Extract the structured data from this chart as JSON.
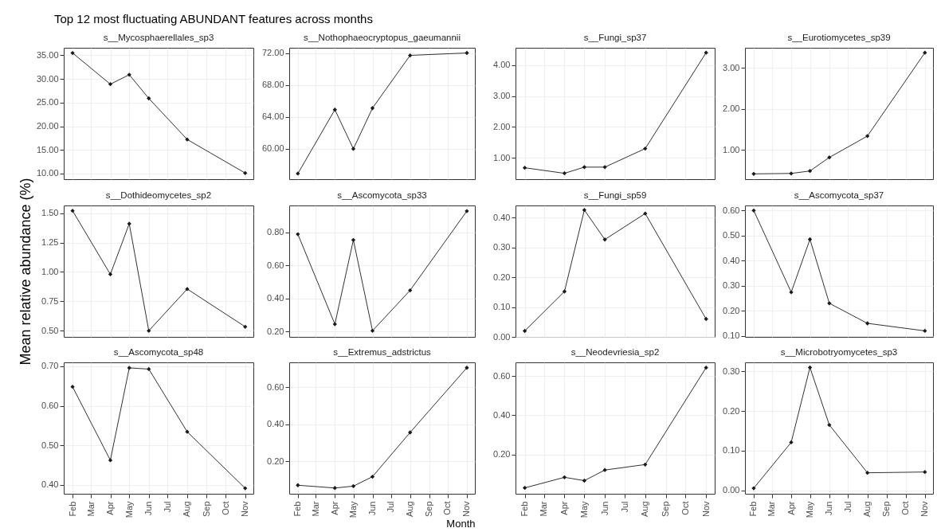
{
  "chart_data": [
    {
      "type": "line",
      "title": "Top 12 most fluctuating ABUNDANT features across months",
      "x": [
        "--02-01",
        "--04-01",
        "--05-01",
        "--06-01",
        "--08-01",
        "--11-01"
      ],
      "xlim": [
        "--01-18",
        "--11-14"
      ],
      "xticks": [
        {
          "value": "--02-01",
          "label": null
        },
        {
          "value": "--03-01",
          "label": null
        },
        {
          "value": "--04-01",
          "label": null
        },
        {
          "value": "--05-01",
          "label": null
        },
        {
          "value": "--06-01",
          "label": null
        },
        {
          "value": "--07-01",
          "label": null
        },
        {
          "value": "--08-01",
          "label": null
        },
        {
          "value": "--09-01",
          "label": null
        },
        {
          "value": "--10-01",
          "label": null
        },
        {
          "value": "--11-01",
          "label": null
        }
      ],
      "ylim": [
        8.8,
        36.6
      ],
      "yticks": [
        {
          "value": 10,
          "label": "10.00"
        },
        {
          "value": 15,
          "label": "15.00"
        },
        {
          "value": 20,
          "label": "20.00"
        },
        {
          "value": 25,
          "label": "25.00"
        },
        {
          "value": 30,
          "label": "30.00"
        },
        {
          "value": 35,
          "label": "35.00"
        }
      ],
      "grid": true,
      "marker": "diamond",
      "tick_labels": "y",
      "series": [
        {
          "name": "s__Mycosphaerellales_sp3",
          "color": "#1a1a1a",
          "values": [
            35.5,
            28.9,
            30.9,
            25.9,
            17.2,
            10.1
          ]
        }
      ]
    },
    {
      "type": "line",
      "x": [
        "--02-01",
        "--04-01",
        "--05-01",
        "--06-01",
        "--08-01",
        "--11-01"
      ],
      "xlim": [
        "--01-18",
        "--11-14"
      ],
      "xticks": [
        {
          "value": "--02-01",
          "label": null
        },
        {
          "value": "--03-01",
          "label": null
        },
        {
          "value": "--04-01",
          "label": null
        },
        {
          "value": "--05-01",
          "label": null
        },
        {
          "value": "--06-01",
          "label": null
        },
        {
          "value": "--07-01",
          "label": null
        },
        {
          "value": "--08-01",
          "label": null
        },
        {
          "value": "--09-01",
          "label": null
        },
        {
          "value": "--10-01",
          "label": null
        },
        {
          "value": "--11-01",
          "label": null
        }
      ],
      "ylim": [
        56.2,
        72.65
      ],
      "yticks": [
        {
          "value": 60,
          "label": "60.00"
        },
        {
          "value": 64,
          "label": "64.00"
        },
        {
          "value": 68,
          "label": "68.00"
        },
        {
          "value": 72,
          "label": "72.00"
        }
      ],
      "grid": true,
      "marker": "diamond",
      "tick_labels": "y",
      "series": [
        {
          "name": "s__Nothophaeocryptopus_gaeumannii",
          "color": "#1a1a1a",
          "values": [
            56.9,
            64.9,
            60.0,
            65.1,
            71.7,
            72.0
          ]
        }
      ]
    },
    {
      "type": "line",
      "x": [
        "--02-01",
        "--04-01",
        "--05-01",
        "--06-01",
        "--08-01",
        "--11-01"
      ],
      "xlim": [
        "--01-18",
        "--11-14"
      ],
      "xticks": [
        {
          "value": "--02-01",
          "label": null
        },
        {
          "value": "--03-01",
          "label": null
        },
        {
          "value": "--04-01",
          "label": null
        },
        {
          "value": "--05-01",
          "label": null
        },
        {
          "value": "--06-01",
          "label": null
        },
        {
          "value": "--07-01",
          "label": null
        },
        {
          "value": "--08-01",
          "label": null
        },
        {
          "value": "--09-01",
          "label": null
        },
        {
          "value": "--10-01",
          "label": null
        },
        {
          "value": "--11-01",
          "label": null
        }
      ],
      "ylim": [
        0.31,
        4.56
      ],
      "yticks": [
        {
          "value": 1,
          "label": "1.00"
        },
        {
          "value": 2,
          "label": "2.00"
        },
        {
          "value": 3,
          "label": "3.00"
        },
        {
          "value": 4,
          "label": "4.00"
        }
      ],
      "grid": true,
      "marker": "diamond",
      "tick_labels": "y",
      "series": [
        {
          "name": "s__Fungi_sp37",
          "color": "#1a1a1a",
          "values": [
            0.68,
            0.5,
            0.7,
            0.7,
            1.3,
            4.4
          ]
        }
      ]
    },
    {
      "type": "line",
      "x": [
        "--02-01",
        "--04-01",
        "--05-01",
        "--06-01",
        "--08-01",
        "--11-01"
      ],
      "xlim": [
        "--01-18",
        "--11-14"
      ],
      "xticks": [
        {
          "value": "--02-01",
          "label": null
        },
        {
          "value": "--03-01",
          "label": null
        },
        {
          "value": "--04-01",
          "label": null
        },
        {
          "value": "--05-01",
          "label": null
        },
        {
          "value": "--06-01",
          "label": null
        },
        {
          "value": "--07-01",
          "label": null
        },
        {
          "value": "--08-01",
          "label": null
        },
        {
          "value": "--09-01",
          "label": null
        },
        {
          "value": "--10-01",
          "label": null
        },
        {
          "value": "--11-01",
          "label": null
        }
      ],
      "ylim": [
        0.29,
        3.49
      ],
      "yticks": [
        {
          "value": 1,
          "label": "1.00"
        },
        {
          "value": 2,
          "label": "2.00"
        },
        {
          "value": 3,
          "label": "3.00"
        }
      ],
      "grid": true,
      "marker": "diamond",
      "tick_labels": "y",
      "series": [
        {
          "name": "s__Eurotiomycetes_sp39",
          "color": "#1a1a1a",
          "values": [
            0.42,
            0.43,
            0.49,
            0.82,
            1.34,
            3.37
          ]
        }
      ]
    },
    {
      "type": "line",
      "ylabel": "Mean relative abundance (%)",
      "x": [
        "--02-01",
        "--04-01",
        "--05-01",
        "--06-01",
        "--08-01",
        "--11-01"
      ],
      "xlim": [
        "--01-18",
        "--11-14"
      ],
      "xticks": [
        {
          "value": "--02-01",
          "label": null
        },
        {
          "value": "--03-01",
          "label": null
        },
        {
          "value": "--04-01",
          "label": null
        },
        {
          "value": "--05-01",
          "label": null
        },
        {
          "value": "--06-01",
          "label": null
        },
        {
          "value": "--07-01",
          "label": null
        },
        {
          "value": "--08-01",
          "label": null
        },
        {
          "value": "--09-01",
          "label": null
        },
        {
          "value": "--10-01",
          "label": null
        },
        {
          "value": "--11-01",
          "label": null
        }
      ],
      "ylim": [
        0.448,
        1.565
      ],
      "yticks": [
        {
          "value": 0.5,
          "label": "0.50"
        },
        {
          "value": 0.75,
          "label": "0.75"
        },
        {
          "value": 1,
          "label": "1.00"
        },
        {
          "value": 1.25,
          "label": "1.25"
        },
        {
          "value": 1.5,
          "label": "1.50"
        }
      ],
      "grid": true,
      "marker": "diamond",
      "tick_labels": "y",
      "series": [
        {
          "name": "s__Dothideomycetes_sp2",
          "color": "#1a1a1a",
          "values": [
            1.52,
            0.98,
            1.41,
            0.5,
            0.855,
            0.534
          ]
        }
      ]
    },
    {
      "type": "line",
      "x": [
        "--02-01",
        "--04-01",
        "--05-01",
        "--06-01",
        "--08-01",
        "--11-01"
      ],
      "xlim": [
        "--01-18",
        "--11-14"
      ],
      "xticks": [
        {
          "value": "--02-01",
          "label": null
        },
        {
          "value": "--03-01",
          "label": null
        },
        {
          "value": "--04-01",
          "label": null
        },
        {
          "value": "--05-01",
          "label": null
        },
        {
          "value": "--06-01",
          "label": null
        },
        {
          "value": "--07-01",
          "label": null
        },
        {
          "value": "--08-01",
          "label": null
        },
        {
          "value": "--09-01",
          "label": null
        },
        {
          "value": "--10-01",
          "label": null
        },
        {
          "value": "--11-01",
          "label": null
        }
      ],
      "ylim": [
        0.168,
        0.964
      ],
      "yticks": [
        {
          "value": 0.2,
          "label": "0.20"
        },
        {
          "value": 0.4,
          "label": "0.40"
        },
        {
          "value": 0.6,
          "label": "0.60"
        },
        {
          "value": 0.8,
          "label": "0.80"
        }
      ],
      "grid": true,
      "marker": "diamond",
      "tick_labels": "y",
      "series": [
        {
          "name": "s__Ascomycota_sp33",
          "color": "#1a1a1a",
          "values": [
            0.79,
            0.245,
            0.755,
            0.205,
            0.45,
            0.93
          ]
        }
      ]
    },
    {
      "type": "line",
      "x": [
        "--02-01",
        "--04-01",
        "--05-01",
        "--06-01",
        "--08-01",
        "--11-01"
      ],
      "xlim": [
        "--01-18",
        "--11-14"
      ],
      "xticks": [
        {
          "value": "--02-01",
          "label": null
        },
        {
          "value": "--03-01",
          "label": null
        },
        {
          "value": "--04-01",
          "label": null
        },
        {
          "value": "--05-01",
          "label": null
        },
        {
          "value": "--06-01",
          "label": null
        },
        {
          "value": "--07-01",
          "label": null
        },
        {
          "value": "--08-01",
          "label": null
        },
        {
          "value": "--09-01",
          "label": null
        },
        {
          "value": "--10-01",
          "label": null
        },
        {
          "value": "--11-01",
          "label": null
        }
      ],
      "ylim": [
        0,
        0.44
      ],
      "yticks": [
        {
          "value": 0,
          "label": "0.00"
        },
        {
          "value": 0.1,
          "label": "0.10"
        },
        {
          "value": 0.2,
          "label": "0.20"
        },
        {
          "value": 0.3,
          "label": "0.30"
        },
        {
          "value": 0.4,
          "label": "0.40"
        }
      ],
      "grid": true,
      "marker": "diamond",
      "tick_labels": "y",
      "series": [
        {
          "name": "s__Fungi_sp59",
          "color": "#1a1a1a",
          "values": [
            0.02,
            0.152,
            0.425,
            0.326,
            0.413,
            0.06
          ]
        }
      ]
    },
    {
      "type": "line",
      "x": [
        "--02-01",
        "--04-01",
        "--05-01",
        "--06-01",
        "--08-01",
        "--11-01"
      ],
      "xlim": [
        "--01-18",
        "--11-14"
      ],
      "xticks": [
        {
          "value": "--02-01",
          "label": null
        },
        {
          "value": "--03-01",
          "label": null
        },
        {
          "value": "--04-01",
          "label": null
        },
        {
          "value": "--05-01",
          "label": null
        },
        {
          "value": "--06-01",
          "label": null
        },
        {
          "value": "--07-01",
          "label": null
        },
        {
          "value": "--08-01",
          "label": null
        },
        {
          "value": "--09-01",
          "label": null
        },
        {
          "value": "--10-01",
          "label": null
        },
        {
          "value": "--11-01",
          "label": null
        }
      ],
      "ylim": [
        0.096,
        0.62
      ],
      "yticks": [
        {
          "value": 0.1,
          "label": "0.10"
        },
        {
          "value": 0.2,
          "label": "0.20"
        },
        {
          "value": 0.3,
          "label": "0.30"
        },
        {
          "value": 0.4,
          "label": "0.40"
        },
        {
          "value": 0.5,
          "label": "0.50"
        },
        {
          "value": 0.6,
          "label": "0.60"
        }
      ],
      "grid": true,
      "marker": "diamond",
      "tick_labels": "y",
      "series": [
        {
          "name": "s__Ascomycota_sp37",
          "color": "#1a1a1a",
          "values": [
            0.6,
            0.274,
            0.485,
            0.23,
            0.15,
            0.12
          ]
        }
      ]
    },
    {
      "type": "line",
      "x": [
        "--02-01",
        "--04-01",
        "--05-01",
        "--06-01",
        "--08-01",
        "--11-01"
      ],
      "xlim": [
        "--01-18",
        "--11-14"
      ],
      "xticks": [
        {
          "value": "--02-01",
          "label": "Feb"
        },
        {
          "value": "--03-01",
          "label": "Mar"
        },
        {
          "value": "--04-01",
          "label": "Apr"
        },
        {
          "value": "--05-01",
          "label": "May"
        },
        {
          "value": "--06-01",
          "label": "Jun"
        },
        {
          "value": "--07-01",
          "label": "Jul"
        },
        {
          "value": "--08-01",
          "label": "Aug"
        },
        {
          "value": "--09-01",
          "label": "Sep"
        },
        {
          "value": "--10-01",
          "label": "Oct"
        },
        {
          "value": "--11-01",
          "label": "Nov"
        }
      ],
      "ylim": [
        0.377,
        0.71
      ],
      "yticks": [
        {
          "value": 0.4,
          "label": "0.40"
        },
        {
          "value": 0.5,
          "label": "0.50"
        },
        {
          "value": 0.6,
          "label": "0.60"
        },
        {
          "value": 0.7,
          "label": "0.70"
        }
      ],
      "grid": true,
      "marker": "diamond",
      "series": [
        {
          "name": "s__Ascomycota_sp48",
          "color": "#1a1a1a",
          "values": [
            0.648,
            0.462,
            0.696,
            0.693,
            0.534,
            0.391
          ]
        }
      ]
    },
    {
      "type": "line",
      "xlabel": "Month",
      "x": [
        "--02-01",
        "--04-01",
        "--05-01",
        "--06-01",
        "--08-01",
        "--11-01"
      ],
      "xlim": [
        "--01-18",
        "--11-14"
      ],
      "xticks": [
        {
          "value": "--02-01",
          "label": "Feb"
        },
        {
          "value": "--03-01",
          "label": "Mar"
        },
        {
          "value": "--04-01",
          "label": "Apr"
        },
        {
          "value": "--05-01",
          "label": "May"
        },
        {
          "value": "--06-01",
          "label": "Jun"
        },
        {
          "value": "--07-01",
          "label": "Jul"
        },
        {
          "value": "--08-01",
          "label": "Aug"
        },
        {
          "value": "--09-01",
          "label": "Sep"
        },
        {
          "value": "--10-01",
          "label": "Oct"
        },
        {
          "value": "--11-01",
          "label": "Nov"
        }
      ],
      "ylim": [
        0.026,
        0.733
      ],
      "yticks": [
        {
          "value": 0.2,
          "label": "0.20"
        },
        {
          "value": 0.4,
          "label": "0.40"
        },
        {
          "value": 0.6,
          "label": "0.60"
        }
      ],
      "grid": true,
      "marker": "diamond",
      "series": [
        {
          "name": "s__Extremus_adstrictus",
          "color": "#1a1a1a",
          "values": [
            0.072,
            0.057,
            0.067,
            0.118,
            0.356,
            0.704
          ]
        }
      ]
    },
    {
      "type": "line",
      "x": [
        "--02-01",
        "--04-01",
        "--05-01",
        "--06-01",
        "--08-01",
        "--11-01"
      ],
      "xlim": [
        "--01-18",
        "--11-14"
      ],
      "xticks": [
        {
          "value": "--02-01",
          "label": "Feb"
        },
        {
          "value": "--03-01",
          "label": "Mar"
        },
        {
          "value": "--04-01",
          "label": "Apr"
        },
        {
          "value": "--05-01",
          "label": "May"
        },
        {
          "value": "--06-01",
          "label": "Jun"
        },
        {
          "value": "--07-01",
          "label": "Jul"
        },
        {
          "value": "--08-01",
          "label": "Aug"
        },
        {
          "value": "--09-01",
          "label": "Sep"
        },
        {
          "value": "--10-01",
          "label": "Oct"
        },
        {
          "value": "--11-01",
          "label": "Nov"
        }
      ],
      "ylim": [
        0,
        0.67
      ],
      "yticks": [
        {
          "value": 0.2,
          "label": "0.20"
        },
        {
          "value": 0.4,
          "label": "0.40"
        },
        {
          "value": 0.6,
          "label": "0.60"
        }
      ],
      "grid": true,
      "marker": "diamond",
      "series": [
        {
          "name": "s__Neodevriesia_sp2",
          "color": "#1a1a1a",
          "values": [
            0.03,
            0.084,
            0.067,
            0.121,
            0.149,
            0.643
          ]
        }
      ]
    },
    {
      "type": "line",
      "x": [
        "--02-01",
        "--04-01",
        "--05-01",
        "--06-01",
        "--08-01",
        "--11-01"
      ],
      "xlim": [
        "--01-18",
        "--11-14"
      ],
      "xticks": [
        {
          "value": "--02-01",
          "label": "Feb"
        },
        {
          "value": "--03-01",
          "label": "Mar"
        },
        {
          "value": "--04-01",
          "label": "Apr"
        },
        {
          "value": "--05-01",
          "label": "May"
        },
        {
          "value": "--06-01",
          "label": "Jun"
        },
        {
          "value": "--07-01",
          "label": "Jul"
        },
        {
          "value": "--08-01",
          "label": "Aug"
        },
        {
          "value": "--09-01",
          "label": "Sep"
        },
        {
          "value": "--10-01",
          "label": "Oct"
        },
        {
          "value": "--11-01",
          "label": "Nov"
        }
      ],
      "ylim": [
        -0.009,
        0.323
      ],
      "yticks": [
        {
          "value": 0,
          "label": "0.00"
        },
        {
          "value": 0.1,
          "label": "0.10"
        },
        {
          "value": 0.2,
          "label": "0.20"
        },
        {
          "value": 0.3,
          "label": "0.30"
        }
      ],
      "grid": true,
      "marker": "diamond",
      "series": [
        {
          "name": "s__Microbotryomycetes_sp3",
          "color": "#1a1a1a",
          "values": [
            0.005,
            0.121,
            0.31,
            0.165,
            0.044,
            0.046
          ]
        }
      ]
    }
  ]
}
